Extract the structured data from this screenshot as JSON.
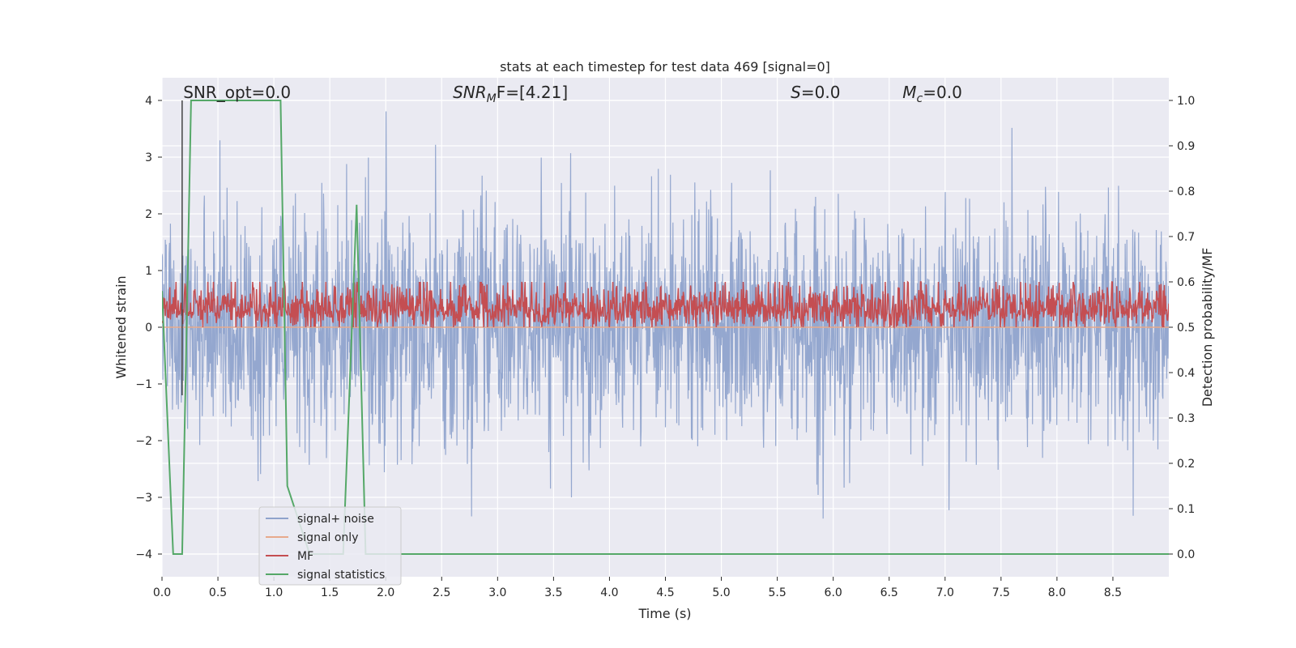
{
  "chart_data": {
    "type": "line",
    "title": "stats at each timestep for test data 469 [signal=0]",
    "xlabel": "Time (s)",
    "ylabel_left": "Whitened strain",
    "ylabel_right": "Detection probability/MF",
    "xlim": [
      0,
      9.0
    ],
    "ylim_left": [
      -4.4,
      4.4
    ],
    "ylim_right": [
      -0.05,
      1.05
    ],
    "x_ticks": [
      "0.0",
      "0.5",
      "1.0",
      "1.5",
      "2.0",
      "2.5",
      "3.0",
      "3.5",
      "4.0",
      "4.5",
      "5.0",
      "5.5",
      "6.0",
      "6.5",
      "7.0",
      "7.5",
      "8.0",
      "8.5"
    ],
    "y_ticks_left": [
      "−4",
      "−3",
      "−2",
      "−1",
      "0",
      "1",
      "2",
      "3",
      "4"
    ],
    "y_ticks_right": [
      "0.0",
      "0.1",
      "0.2",
      "0.3",
      "0.4",
      "0.5",
      "0.6",
      "0.7",
      "0.8",
      "0.9",
      "1.0"
    ],
    "grid": true,
    "legend_position": "lower-left",
    "annotations": [
      {
        "text": "SNR_opt=0.0",
        "x": 0.19,
        "italic": false
      },
      {
        "text_main": "SNR",
        "text_sub": "M",
        "text_rest": "F=[4.21]",
        "x": 2.6,
        "mixed": true
      },
      {
        "text_main": "S",
        "text_sub": "",
        "text_rest": "=0.0",
        "x": 5.62,
        "mixed": true
      },
      {
        "text_main": "M",
        "text_sub": "c",
        "text_rest": "=0.0",
        "x": 6.62,
        "mixed": true
      }
    ],
    "marker_line_x": 0.18,
    "series": [
      {
        "name": "signal+ noise",
        "color": "#8fa3cc",
        "axis": "left",
        "kind": "noise",
        "approx_std": 1.0,
        "range_approx": [
          -4.0,
          4.0
        ]
      },
      {
        "name": "signal only",
        "color": "#e7a98c",
        "axis": "left",
        "kind": "flat",
        "value": 0
      },
      {
        "name": "MF",
        "color": "#c44e52",
        "axis": "right",
        "kind": "noise",
        "approx_mean": 0.54,
        "approx_range": [
          0.5,
          0.6
        ]
      },
      {
        "name": "signal statistics",
        "color": "#55a868",
        "axis": "right",
        "kind": "piecewise",
        "x": [
          0.0,
          0.1,
          0.18,
          0.26,
          1.06,
          1.12,
          1.32,
          1.62,
          1.74,
          1.82,
          9.0
        ],
        "y": [
          0.58,
          0.0,
          0.0,
          1.0,
          1.0,
          0.15,
          0.0,
          0.0,
          0.77,
          0.0,
          0.0
        ]
      }
    ]
  }
}
